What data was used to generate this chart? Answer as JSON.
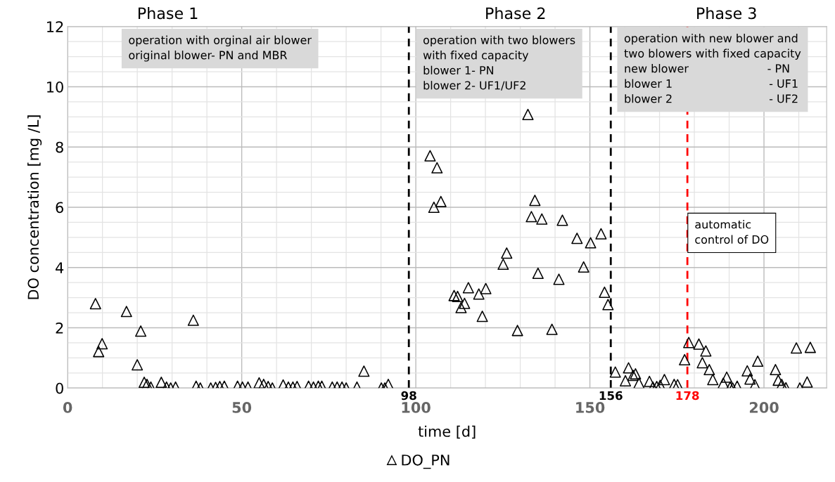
{
  "chart_data": {
    "type": "scatter",
    "xlabel": "time [d]",
    "ylabel": "DO concentration [mg /L]",
    "xlim": [
      0,
      218
    ],
    "xticks": [
      0,
      50,
      100,
      150,
      200
    ],
    "ylim": [
      0,
      12
    ],
    "yticks": [
      0,
      2,
      4,
      6,
      8,
      10,
      12
    ],
    "grid": true,
    "legend": "bottom",
    "marker": "triangle",
    "series": [
      {
        "name": "DO_PN",
        "color": "#000000",
        "x": [
          8.0,
          8.9,
          9.9,
          16.9,
          21.0,
          20.0,
          36.1,
          22.0,
          22.8,
          23.9,
          26.9,
          28.4,
          29.6,
          31.0,
          36.9,
          38.1,
          41.1,
          42.5,
          43.7,
          45.0,
          48.8,
          50.2,
          51.8,
          55.0,
          56.3,
          57.6,
          58.8,
          61.9,
          63.4,
          64.7,
          65.9,
          69.2,
          70.6,
          72.0,
          73.0,
          76.0,
          77.4,
          78.8,
          80.0,
          83.1,
          85.1,
          90.1,
          91.1,
          92.1,
          104.1,
          106.1,
          105.2,
          107.2,
          132.2,
          134.2,
          133.2,
          136.2,
          142.1,
          146.3,
          150.2,
          153.2,
          126.1,
          125.1,
          148.2,
          135.1,
          141.1,
          115.1,
          120.1,
          118.1,
          111.0,
          112.0,
          114.0,
          113.0,
          119.1,
          154.2,
          155.2,
          139.1,
          129.2,
          157.3,
          161.1,
          160.2,
          162.4,
          163.1,
          164.1,
          167.1,
          168.1,
          169.2,
          170.2,
          171.4,
          174.2,
          175.2,
          177.2,
          178.4,
          181.3,
          183.3,
          182.3,
          184.3,
          185.3,
          188.3,
          189.3,
          190.3,
          191.0,
          192.3,
          195.2,
          196.0,
          197.4,
          198.2,
          203.3,
          204.1,
          205.1,
          206.3,
          209.3,
          213.3,
          210.3,
          212.4
        ],
        "values": [
          2.8,
          1.21,
          1.47,
          2.54,
          1.89,
          0.77,
          2.25,
          0.19,
          0.12,
          0.03,
          0.19,
          0.03,
          0,
          0.03,
          0.06,
          0,
          0,
          0.02,
          0.05,
          0.06,
          0.06,
          0.03,
          0.03,
          0.17,
          0.12,
          0.05,
          0,
          0.1,
          0.03,
          0.03,
          0.05,
          0.06,
          0.03,
          0.06,
          0.06,
          0.03,
          0.03,
          0.03,
          0,
          0.03,
          0.56,
          0,
          0,
          0.12,
          7.71,
          7.31,
          6.0,
          6.19,
          9.08,
          6.23,
          5.69,
          5.61,
          5.57,
          4.97,
          4.82,
          5.12,
          4.48,
          4.11,
          4.02,
          3.81,
          3.61,
          3.33,
          3.3,
          3.12,
          3.07,
          3.04,
          2.81,
          2.67,
          2.38,
          3.18,
          2.77,
          1.95,
          1.91,
          0.53,
          0.67,
          0.24,
          0.42,
          0.47,
          0.16,
          0.22,
          0.03,
          0.05,
          0.09,
          0.28,
          0.12,
          0.11,
          0.94,
          1.51,
          1.46,
          1.23,
          0.84,
          0.61,
          0.28,
          0.16,
          0.36,
          0.03,
          0,
          0.06,
          0.57,
          0.3,
          0.11,
          0.89,
          0.61,
          0.26,
          0.12,
          0.01,
          1.33,
          1.35,
          0,
          0.2
        ]
      }
    ],
    "ref_lines": [
      {
        "axis": "x",
        "value": 98,
        "label": "98",
        "color": "#000000",
        "line_style": "dashed"
      },
      {
        "axis": "x",
        "value": 156,
        "label": "156",
        "color": "#000000",
        "line_style": "dashed"
      },
      {
        "axis": "x",
        "value": 178,
        "label": "178",
        "color": "#ff0000",
        "line_style": "dashed"
      }
    ],
    "annotations": [
      "Phase 1",
      "Phase 2",
      "Phase 3",
      "operation with orginal air blower\noriginal blower- PN and MBR",
      "operation with two blowers\nwith fixed capacity\nblower 1- PN\nblower 2- UF1/UF2",
      "operation with new blower and\ntwo blowers with fixed capacity\nnew blower                      - PN\nblower 1                           - UF1\nblower 2                           - UF2",
      "automatic\ncontrol of DO"
    ]
  }
}
